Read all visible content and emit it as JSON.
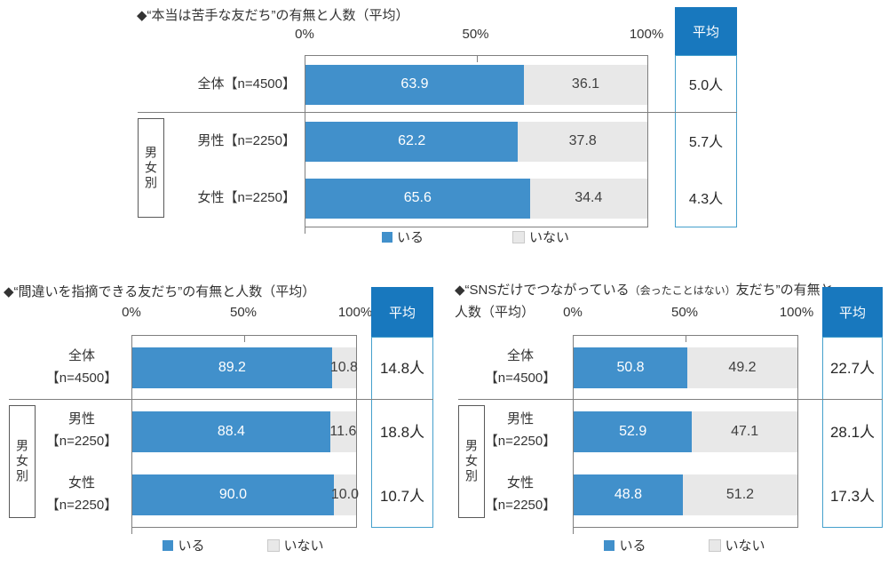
{
  "page": {
    "background": "#FFFFFF"
  },
  "colors": {
    "bar_yes": "#4190CB",
    "bar_no": "#E8E8E8",
    "bar_no_border": "#C9C9C9",
    "avg_header_bg": "#1878BE",
    "avg_box_border": "#45A0CC",
    "plot_border": "#7F7F7F",
    "divider": "#808080",
    "text_dark": "#333333"
  },
  "chart_data": [
    {
      "type": "bar",
      "orientation": "horizontal",
      "stacked": true,
      "title": "◆“本当は苦手な友だち”の有無と人数（平均）",
      "title_lines": [
        [
          {
            "t": "◆“本当は苦手な友だち”の有無と人数（平均）",
            "small": false
          }
        ]
      ],
      "ticks": [
        "0%",
        "50%",
        "100%"
      ],
      "xlim": [
        0,
        100
      ],
      "grid": false,
      "legend_position": "bottom",
      "avg_header": "平均",
      "group_label": "男女別",
      "categories": [
        "全体【n=4500】",
        "男性【n=2250】",
        "女性【n=2250】"
      ],
      "category_lines": [
        [
          "全体【n=4500】"
        ],
        [
          "男性【n=2250】"
        ],
        [
          "女性【n=2250】"
        ]
      ],
      "series": [
        {
          "name": "いる",
          "values": [
            63.9,
            62.2,
            65.6
          ]
        },
        {
          "name": "いない",
          "values": [
            36.1,
            37.8,
            34.4
          ]
        }
      ],
      "averages": [
        "5.0人",
        "5.7人",
        "4.3人"
      ]
    },
    {
      "type": "bar",
      "orientation": "horizontal",
      "stacked": true,
      "title": "◆“間違いを指摘できる友だち”の有無と人数（平均）",
      "title_lines": [
        [
          {
            "t": "◆“間違いを指摘できる友だち”の有無と人数（平均）",
            "small": false
          }
        ]
      ],
      "ticks": [
        "0%",
        "50%",
        "100%"
      ],
      "xlim": [
        0,
        100
      ],
      "grid": false,
      "legend_position": "bottom",
      "avg_header": "平均",
      "group_label": "男女別",
      "categories": [
        "全体【n=4500】",
        "男性【n=2250】",
        "女性【n=2250】"
      ],
      "category_lines": [
        [
          "全体",
          "【n=4500】"
        ],
        [
          "男性",
          "【n=2250】"
        ],
        [
          "女性",
          "【n=2250】"
        ]
      ],
      "series": [
        {
          "name": "いる",
          "values": [
            89.2,
            88.4,
            90.0
          ]
        },
        {
          "name": "いない",
          "values": [
            10.8,
            11.6,
            10.0
          ]
        }
      ],
      "averages": [
        "14.8人",
        "18.8人",
        "10.7人"
      ]
    },
    {
      "type": "bar",
      "orientation": "horizontal",
      "stacked": true,
      "title": "◆“SNSだけでつながっている（会ったことはない）友だち”の有無と人数（平均）",
      "title_lines": [
        [
          {
            "t": "◆“SNSだけでつながっている",
            "small": false
          },
          {
            "t": "（会ったことはない）",
            "small": true
          },
          {
            "t": "友だち”の有無と",
            "small": false
          }
        ],
        [
          {
            "t": "人数（平均）",
            "small": false
          }
        ]
      ],
      "ticks": [
        "0%",
        "50%",
        "100%"
      ],
      "xlim": [
        0,
        100
      ],
      "grid": false,
      "legend_position": "bottom",
      "avg_header": "平均",
      "group_label": "男女別",
      "categories": [
        "全体【n=4500】",
        "男性【n=2250】",
        "女性【n=2250】"
      ],
      "category_lines": [
        [
          "全体",
          "【n=4500】"
        ],
        [
          "男性",
          "【n=2250】"
        ],
        [
          "女性",
          "【n=2250】"
        ]
      ],
      "series": [
        {
          "name": "いる",
          "values": [
            50.8,
            52.9,
            48.8
          ]
        },
        {
          "name": "いない",
          "values": [
            49.2,
            47.1,
            51.2
          ]
        }
      ],
      "averages": [
        "22.7人",
        "28.1人",
        "17.3人"
      ]
    }
  ]
}
